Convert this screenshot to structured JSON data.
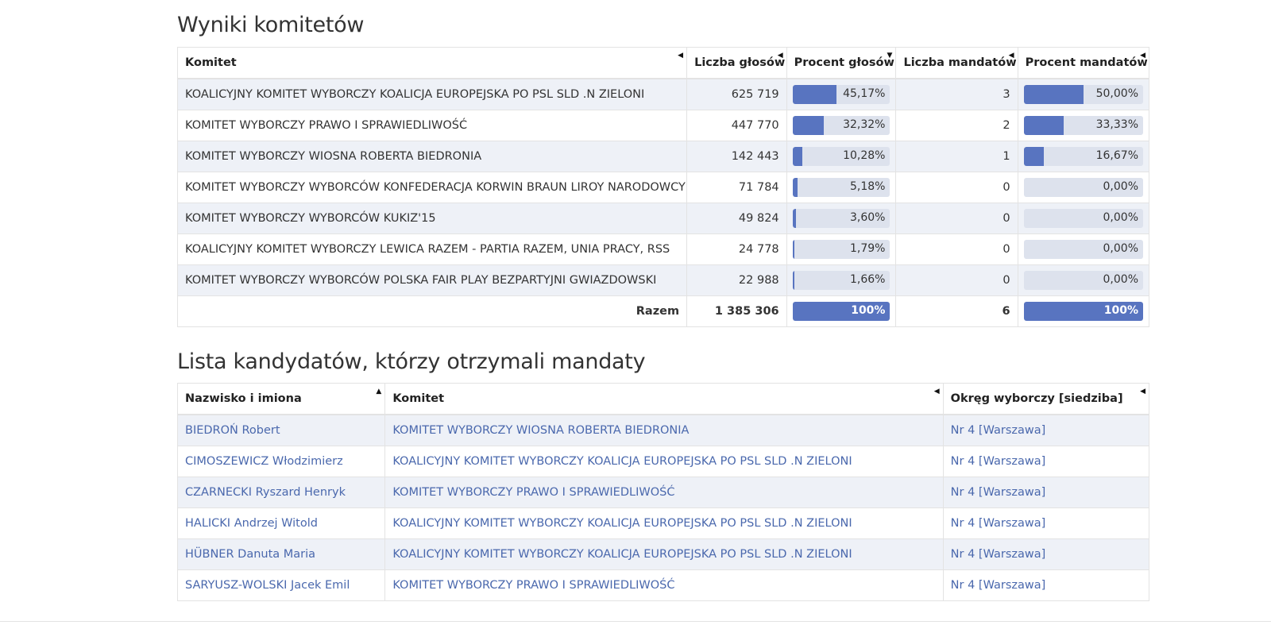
{
  "committees_section": {
    "title": "Wyniki komitetów",
    "headers": {
      "committee": "Komitet",
      "votes": "Liczba głosów",
      "votes_pct": "Procent głosów",
      "seats": "Liczba mandatów",
      "seats_pct": "Procent mandatów"
    },
    "rows": [
      {
        "committee": "KOALICYJNY KOMITET WYBORCZY KOALICJA EUROPEJSKA PO PSL SLD .N ZIELONI",
        "votes": "625 719",
        "votes_pct": "45,17%",
        "votes_frac": 0.4517,
        "seats": "3",
        "seats_pct": "50,00%",
        "seats_frac": 0.5
      },
      {
        "committee": "KOMITET WYBORCZY PRAWO I SPRAWIEDLIWOŚĆ",
        "votes": "447 770",
        "votes_pct": "32,32%",
        "votes_frac": 0.3232,
        "seats": "2",
        "seats_pct": "33,33%",
        "seats_frac": 0.3333
      },
      {
        "committee": "KOMITET WYBORCZY WIOSNA ROBERTA BIEDRONIA",
        "votes": "142 443",
        "votes_pct": "10,28%",
        "votes_frac": 0.1028,
        "seats": "1",
        "seats_pct": "16,67%",
        "seats_frac": 0.1667
      },
      {
        "committee": "KOMITET WYBORCZY WYBORCÓW KONFEDERACJA KORWIN BRAUN LIROY NARODOWCY",
        "votes": "71 784",
        "votes_pct": "5,18%",
        "votes_frac": 0.0518,
        "seats": "0",
        "seats_pct": "0,00%",
        "seats_frac": 0
      },
      {
        "committee": "KOMITET WYBORCZY WYBORCÓW KUKIZ'15",
        "votes": "49 824",
        "votes_pct": "3,60%",
        "votes_frac": 0.036,
        "seats": "0",
        "seats_pct": "0,00%",
        "seats_frac": 0
      },
      {
        "committee": "KOALICYJNY KOMITET WYBORCZY LEWICA RAZEM - PARTIA RAZEM, UNIA PRACY, RSS",
        "votes": "24 778",
        "votes_pct": "1,79%",
        "votes_frac": 0.0179,
        "seats": "0",
        "seats_pct": "0,00%",
        "seats_frac": 0
      },
      {
        "committee": "KOMITET WYBORCZY WYBORCÓW POLSKA FAIR PLAY BEZPARTYJNI GWIAZDOWSKI",
        "votes": "22 988",
        "votes_pct": "1,66%",
        "votes_frac": 0.0166,
        "seats": "0",
        "seats_pct": "0,00%",
        "seats_frac": 0
      }
    ],
    "total": {
      "label": "Razem",
      "votes": "1 385 306",
      "votes_pct": "100%",
      "votes_frac": 1,
      "seats": "6",
      "seats_pct": "100%",
      "seats_frac": 1
    }
  },
  "candidates_section": {
    "title": "Lista kandydatów, którzy otrzymali mandaty",
    "headers": {
      "name": "Nazwisko i imiona",
      "committee": "Komitet",
      "district": "Okręg wyborczy [siedziba]"
    },
    "rows": [
      {
        "name": "BIEDROŃ Robert",
        "committee": "KOMITET WYBORCZY WIOSNA ROBERTA BIEDRONIA",
        "district": "Nr 4 [Warszawa]"
      },
      {
        "name": "CIMOSZEWICZ Włodzimierz",
        "committee": "KOALICYJNY KOMITET WYBORCZY KOALICJA EUROPEJSKA PO PSL SLD .N ZIELONI",
        "district": "Nr 4 [Warszawa]"
      },
      {
        "name": "CZARNECKI Ryszard Henryk",
        "committee": "KOMITET WYBORCZY PRAWO I SPRAWIEDLIWOŚĆ",
        "district": "Nr 4 [Warszawa]"
      },
      {
        "name": "HALICKI Andrzej Witold",
        "committee": "KOALICYJNY KOMITET WYBORCZY KOALICJA EUROPEJSKA PO PSL SLD .N ZIELONI",
        "district": "Nr 4 [Warszawa]"
      },
      {
        "name": "HÜBNER Danuta Maria",
        "committee": "KOALICYJNY KOMITET WYBORCZY KOALICJA EUROPEJSKA PO PSL SLD .N ZIELONI",
        "district": "Nr 4 [Warszawa]"
      },
      {
        "name": "SARYUSZ-WOLSKI Jacek Emil",
        "committee": "KOMITET WYBORCZY PRAWO I SPRAWIEDLIWOŚĆ",
        "district": "Nr 4 [Warszawa]"
      }
    ]
  },
  "sort_icons": {
    "unsorted": "sort-left-triangle-icon",
    "descending": "sort-down-triangle-icon",
    "ascending": "sort-up-triangle-icon"
  },
  "colors": {
    "bar_fill": "#5874c0",
    "bar_track": "#dde2ed",
    "link": "#4a68ad",
    "row_stripe": "#eef1f7"
  }
}
